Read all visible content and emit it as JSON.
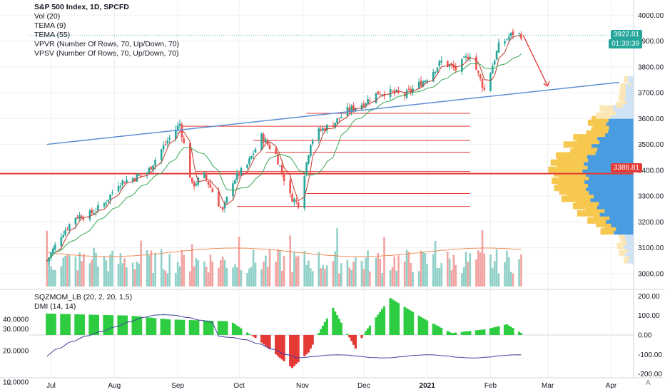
{
  "legend": {
    "title": "S&P 500 Index, 1D, SPCFD",
    "items": [
      "Vol (20)",
      "TEMA (9)",
      "TEMA (55)",
      "VPVR (Number Of Rows, 70, Up/Down, 70)",
      "VPSV (Number Of Rows, 70, Up/Down, 70)"
    ]
  },
  "lower_legend": [
    "SQZMOM_LB (20, 2, 20, 1.5)",
    "DMI (14, 14)"
  ],
  "price_tags": {
    "last": "3922.81",
    "countdown": "01:39:39",
    "level": "3386.81"
  },
  "colors": {
    "up": "#26a69a",
    "down": "#ef5350",
    "grid": "#eef0f3",
    "trend": "#5b8fd4",
    "hline": "#e53935",
    "vol_up": "#8fd0c8",
    "vol_down": "#f2a3a1",
    "mom_up": "#2ecc40",
    "mom_down": "#e53935",
    "dmi": "#3f3fa0"
  },
  "icons": {
    "zoom": "Z",
    "auto": "A"
  },
  "chart_data": {
    "type": "candlestick",
    "symbol": "S&P 500 Index",
    "interval": "1D",
    "x_ticks": [
      "Jul",
      "Aug",
      "Sep",
      "Oct",
      "Nov",
      "Dec",
      "2021",
      "Feb",
      "Mar",
      "Apr"
    ],
    "y_ticks_right": [
      "4000.00",
      "3900.00",
      "3800.00",
      "3700.00",
      "3600.00",
      "3500.00",
      "3400.00",
      "3300.00",
      "3200.00",
      "3100.00",
      "3000.00"
    ],
    "ylim": [
      2950,
      4020
    ],
    "price_path": [
      {
        "date": "2020-06-29",
        "close": 3050
      },
      {
        "date": "2020-07-06",
        "close": 3150
      },
      {
        "date": "2020-07-13",
        "close": 3220
      },
      {
        "date": "2020-07-20",
        "close": 3230
      },
      {
        "date": "2020-07-27",
        "close": 3270
      },
      {
        "date": "2020-08-03",
        "close": 3350
      },
      {
        "date": "2020-08-10",
        "close": 3370
      },
      {
        "date": "2020-08-17",
        "close": 3390
      },
      {
        "date": "2020-08-24",
        "close": 3480
      },
      {
        "date": "2020-09-02",
        "close": 3580
      },
      {
        "date": "2020-09-08",
        "close": 3340
      },
      {
        "date": "2020-09-14",
        "close": 3380
      },
      {
        "date": "2020-09-23",
        "close": 3240
      },
      {
        "date": "2020-09-28",
        "close": 3360
      },
      {
        "date": "2020-10-05",
        "close": 3420
      },
      {
        "date": "2020-10-12",
        "close": 3530
      },
      {
        "date": "2020-10-19",
        "close": 3460
      },
      {
        "date": "2020-10-26",
        "close": 3300
      },
      {
        "date": "2020-10-30",
        "close": 3270
      },
      {
        "date": "2020-11-05",
        "close": 3510
      },
      {
        "date": "2020-11-09",
        "close": 3550
      },
      {
        "date": "2020-11-16",
        "close": 3580
      },
      {
        "date": "2020-11-23",
        "close": 3630
      },
      {
        "date": "2020-12-01",
        "close": 3660
      },
      {
        "date": "2020-12-08",
        "close": 3700
      },
      {
        "date": "2020-12-15",
        "close": 3700
      },
      {
        "date": "2020-12-21",
        "close": 3690
      },
      {
        "date": "2020-12-31",
        "close": 3750
      },
      {
        "date": "2021-01-08",
        "close": 3820
      },
      {
        "date": "2021-01-15",
        "close": 3790
      },
      {
        "date": "2021-01-22",
        "close": 3850
      },
      {
        "date": "2021-01-29",
        "close": 3710
      },
      {
        "date": "2021-02-05",
        "close": 3880
      },
      {
        "date": "2021-02-12",
        "close": 3930
      },
      {
        "date": "2021-02-16",
        "close": 3922.81
      }
    ],
    "trendline": [
      {
        "date": "2020-06-29",
        "price": 3500
      },
      {
        "date": "2021-04-05",
        "price": 3740
      }
    ],
    "horizontal_levels": [
      3620,
      3570,
      3515,
      3470,
      3395,
      3386.81,
      3310,
      3260
    ],
    "annotation_arrow": {
      "from": {
        "date": "2021-02-17",
        "price": 3922
      },
      "to": {
        "date": "2021-03-01",
        "price": 3725
      }
    },
    "lower_pane": {
      "left_ticks": [
        "40.0000",
        "30.0000",
        "20.0000",
        "10.0000"
      ],
      "right_ticks": [
        "200.00",
        "100.00",
        "0.00",
        "-100.00",
        "-200.00"
      ],
      "ylim": [
        -220,
        220
      ]
    },
    "volume_profile": "VPVR up/down rows drawn at right, high-volume node near 3386.81"
  }
}
